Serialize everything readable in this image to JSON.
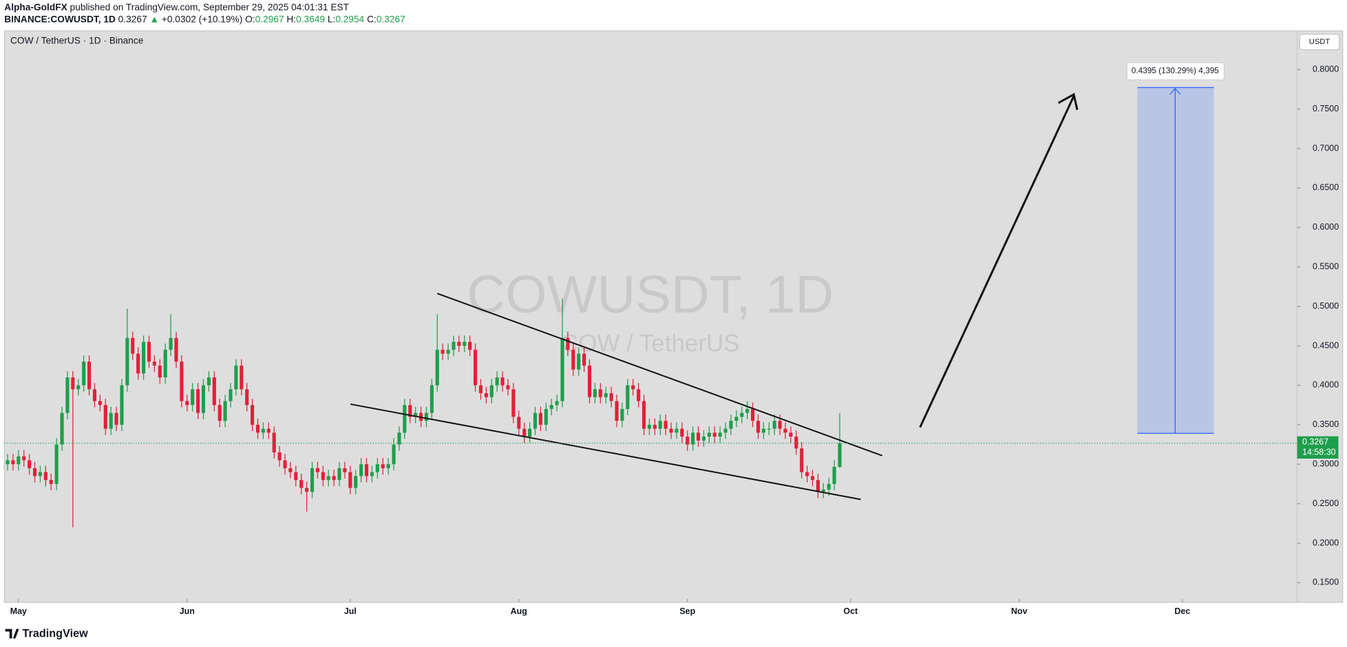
{
  "header": {
    "author": "Alpha-GoldFX",
    "published": "published on TradingView.com, September 29, 2025 04:01:31 EST",
    "symbol": "BINANCE:COWUSDT, 1D",
    "arrow": "▲",
    "change": "+0.0302 (+10.19%)",
    "o": "O:",
    "h": "H:",
    "l": "L:",
    "c": "C:"
  },
  "chart_data": {
    "type": "candlestick",
    "title": "COW / TetherUS · 1D · Binance",
    "watermark": [
      "COWUSDT, 1D",
      "COW / TetherUS"
    ],
    "y_axis_unit": "USDT",
    "countdown": "14:58:30",
    "annotations": [
      "0.4395 (130.29%) 4,395"
    ],
    "up_color": "#1f9e4c",
    "down_color": "#e2203a",
    "grid": false,
    "xlim": [
      -0.6,
      237.1
    ],
    "xticks": [
      {
        "value": 2,
        "label": "May"
      },
      {
        "value": 33,
        "label": "Jun"
      },
      {
        "value": 63,
        "label": "Jul"
      },
      {
        "value": 94,
        "label": "Aug"
      },
      {
        "value": 125,
        "label": "Sep"
      },
      {
        "value": 155,
        "label": "Oct"
      },
      {
        "value": 186,
        "label": "Nov"
      },
      {
        "value": 216,
        "label": "Dec"
      }
    ],
    "ylim": [
      0.125,
      0.849
    ],
    "yticks": [
      {
        "value": 0.15,
        "label": "0.1500"
      },
      {
        "value": 0.2,
        "label": "0.2000"
      },
      {
        "value": 0.25,
        "label": "0.2500"
      },
      {
        "value": 0.3,
        "label": "0.3000"
      },
      {
        "value": 0.35,
        "label": "0.3500"
      },
      {
        "value": 0.4,
        "label": "0.4000"
      },
      {
        "value": 0.45,
        "label": "0.4500"
      },
      {
        "value": 0.5,
        "label": "0.5000"
      },
      {
        "value": 0.55,
        "label": "0.5500"
      },
      {
        "value": 0.6,
        "label": "0.6000"
      },
      {
        "value": 0.65,
        "label": "0.6500"
      },
      {
        "value": 0.7,
        "label": "0.7000"
      },
      {
        "value": 0.75,
        "label": "0.7500"
      },
      {
        "value": 0.8,
        "label": "0.8000"
      }
    ],
    "open": [
      0.3,
      0.305,
      0.3,
      0.31,
      0.305,
      0.295,
      0.285,
      0.29,
      0.28,
      0.275,
      0.325,
      0.365,
      0.41,
      0.395,
      0.4,
      0.43,
      0.395,
      0.38,
      0.375,
      0.345,
      0.365,
      0.35,
      0.4,
      0.46,
      0.44,
      0.415,
      0.455,
      0.43,
      0.425,
      0.41,
      0.445,
      0.46,
      0.43,
      0.38,
      0.375,
      0.395,
      0.365,
      0.4,
      0.41,
      0.375,
      0.355,
      0.38,
      0.395,
      0.425,
      0.395,
      0.375,
      0.35,
      0.34,
      0.345,
      0.34,
      0.315,
      0.305,
      0.295,
      0.29,
      0.28,
      0.27,
      0.265,
      0.295,
      0.29,
      0.28,
      0.285,
      0.28,
      0.295,
      0.29,
      0.27,
      0.285,
      0.3,
      0.285,
      0.29,
      0.3,
      0.295,
      0.3,
      0.325,
      0.34,
      0.375,
      0.36,
      0.365,
      0.355,
      0.365,
      0.4,
      0.445,
      0.44,
      0.445,
      0.455,
      0.45,
      0.455,
      0.445,
      0.4,
      0.39,
      0.385,
      0.4,
      0.41,
      0.4,
      0.395,
      0.36,
      0.345,
      0.335,
      0.345,
      0.365,
      0.35,
      0.37,
      0.375,
      0.38,
      0.46,
      0.445,
      0.42,
      0.44,
      0.425,
      0.385,
      0.395,
      0.385,
      0.39,
      0.38,
      0.355,
      0.37,
      0.4,
      0.395,
      0.38,
      0.345,
      0.35,
      0.345,
      0.355,
      0.345,
      0.34,
      0.345,
      0.335,
      0.325,
      0.34,
      0.33,
      0.335,
      0.34,
      0.335,
      0.34,
      0.345,
      0.355,
      0.36,
      0.365,
      0.37,
      0.355,
      0.34,
      0.345,
      0.345,
      0.355,
      0.345,
      0.34,
      0.335,
      0.32,
      0.29,
      0.285,
      0.28,
      0.265,
      0.268,
      0.275,
      0.2967
    ],
    "high": [
      0.313,
      0.313,
      0.318,
      0.318,
      0.313,
      0.303,
      0.298,
      0.298,
      0.288,
      0.333,
      0.373,
      0.418,
      0.418,
      0.408,
      0.438,
      0.438,
      0.403,
      0.388,
      0.383,
      0.373,
      0.373,
      0.408,
      0.497,
      0.468,
      0.448,
      0.463,
      0.463,
      0.438,
      0.433,
      0.453,
      0.49,
      0.468,
      0.438,
      0.388,
      0.403,
      0.403,
      0.408,
      0.418,
      0.418,
      0.383,
      0.388,
      0.403,
      0.433,
      0.433,
      0.403,
      0.383,
      0.358,
      0.353,
      0.353,
      0.348,
      0.323,
      0.313,
      0.303,
      0.298,
      0.288,
      0.278,
      0.303,
      0.303,
      0.298,
      0.293,
      0.293,
      0.303,
      0.303,
      0.298,
      0.293,
      0.308,
      0.308,
      0.298,
      0.308,
      0.308,
      0.308,
      0.333,
      0.348,
      0.383,
      0.383,
      0.373,
      0.373,
      0.373,
      0.408,
      0.49,
      0.453,
      0.453,
      0.463,
      0.463,
      0.463,
      0.463,
      0.453,
      0.408,
      0.398,
      0.408,
      0.418,
      0.418,
      0.408,
      0.403,
      0.368,
      0.353,
      0.353,
      0.373,
      0.373,
      0.378,
      0.383,
      0.388,
      0.51,
      0.468,
      0.453,
      0.448,
      0.448,
      0.433,
      0.403,
      0.403,
      0.398,
      0.398,
      0.388,
      0.378,
      0.408,
      0.408,
      0.403,
      0.388,
      0.358,
      0.358,
      0.363,
      0.363,
      0.353,
      0.353,
      0.353,
      0.343,
      0.348,
      0.348,
      0.343,
      0.348,
      0.348,
      0.348,
      0.353,
      0.363,
      0.368,
      0.373,
      0.38,
      0.378,
      0.363,
      0.353,
      0.353,
      0.363,
      0.363,
      0.353,
      0.348,
      0.343,
      0.328,
      0.298,
      0.293,
      0.288,
      0.276,
      0.283,
      0.305,
      0.3649
    ],
    "low": [
      0.292,
      0.292,
      0.292,
      0.297,
      0.287,
      0.277,
      0.277,
      0.272,
      0.267,
      0.267,
      0.317,
      0.357,
      0.22,
      0.387,
      0.392,
      0.387,
      0.372,
      0.367,
      0.337,
      0.337,
      0.342,
      0.342,
      0.392,
      0.432,
      0.407,
      0.407,
      0.422,
      0.417,
      0.402,
      0.402,
      0.437,
      0.422,
      0.372,
      0.367,
      0.367,
      0.357,
      0.357,
      0.392,
      0.367,
      0.347,
      0.347,
      0.372,
      0.387,
      0.387,
      0.367,
      0.342,
      0.332,
      0.332,
      0.332,
      0.307,
      0.297,
      0.287,
      0.282,
      0.272,
      0.262,
      0.24,
      0.257,
      0.282,
      0.272,
      0.272,
      0.272,
      0.272,
      0.282,
      0.262,
      0.262,
      0.277,
      0.277,
      0.277,
      0.282,
      0.287,
      0.287,
      0.292,
      0.317,
      0.332,
      0.352,
      0.352,
      0.347,
      0.347,
      0.357,
      0.392,
      0.432,
      0.432,
      0.437,
      0.442,
      0.442,
      0.437,
      0.392,
      0.382,
      0.377,
      0.377,
      0.392,
      0.392,
      0.387,
      0.352,
      0.337,
      0.327,
      0.327,
      0.337,
      0.342,
      0.342,
      0.362,
      0.367,
      0.372,
      0.437,
      0.412,
      0.412,
      0.417,
      0.377,
      0.377,
      0.377,
      0.377,
      0.372,
      0.347,
      0.347,
      0.362,
      0.387,
      0.372,
      0.337,
      0.337,
      0.337,
      0.337,
      0.337,
      0.332,
      0.332,
      0.327,
      0.317,
      0.317,
      0.322,
      0.322,
      0.327,
      0.327,
      0.327,
      0.332,
      0.337,
      0.347,
      0.352,
      0.357,
      0.347,
      0.332,
      0.332,
      0.337,
      0.337,
      0.337,
      0.332,
      0.327,
      0.312,
      0.282,
      0.277,
      0.272,
      0.257,
      0.257,
      0.26,
      0.267,
      0.2954
    ],
    "close": [
      0.305,
      0.3,
      0.31,
      0.305,
      0.295,
      0.285,
      0.29,
      0.28,
      0.275,
      0.325,
      0.365,
      0.41,
      0.395,
      0.4,
      0.43,
      0.395,
      0.38,
      0.375,
      0.345,
      0.365,
      0.35,
      0.4,
      0.46,
      0.44,
      0.415,
      0.455,
      0.43,
      0.425,
      0.41,
      0.445,
      0.46,
      0.43,
      0.38,
      0.375,
      0.395,
      0.365,
      0.4,
      0.41,
      0.375,
      0.355,
      0.38,
      0.395,
      0.425,
      0.395,
      0.375,
      0.35,
      0.34,
      0.345,
      0.34,
      0.315,
      0.305,
      0.295,
      0.29,
      0.28,
      0.27,
      0.265,
      0.295,
      0.29,
      0.28,
      0.285,
      0.28,
      0.295,
      0.29,
      0.27,
      0.285,
      0.3,
      0.285,
      0.29,
      0.3,
      0.295,
      0.3,
      0.325,
      0.34,
      0.375,
      0.36,
      0.365,
      0.355,
      0.365,
      0.4,
      0.445,
      0.44,
      0.445,
      0.455,
      0.45,
      0.455,
      0.445,
      0.4,
      0.39,
      0.385,
      0.4,
      0.41,
      0.4,
      0.395,
      0.36,
      0.345,
      0.335,
      0.345,
      0.365,
      0.35,
      0.37,
      0.375,
      0.38,
      0.46,
      0.445,
      0.42,
      0.44,
      0.425,
      0.385,
      0.395,
      0.385,
      0.39,
      0.38,
      0.355,
      0.37,
      0.4,
      0.395,
      0.38,
      0.345,
      0.35,
      0.345,
      0.355,
      0.345,
      0.34,
      0.345,
      0.335,
      0.325,
      0.34,
      0.33,
      0.335,
      0.34,
      0.335,
      0.34,
      0.345,
      0.355,
      0.36,
      0.365,
      0.37,
      0.355,
      0.34,
      0.345,
      0.345,
      0.355,
      0.345,
      0.34,
      0.335,
      0.32,
      0.29,
      0.285,
      0.28,
      0.265,
      0.268,
      0.275,
      0.2967,
      0.3267
    ]
  }
}
